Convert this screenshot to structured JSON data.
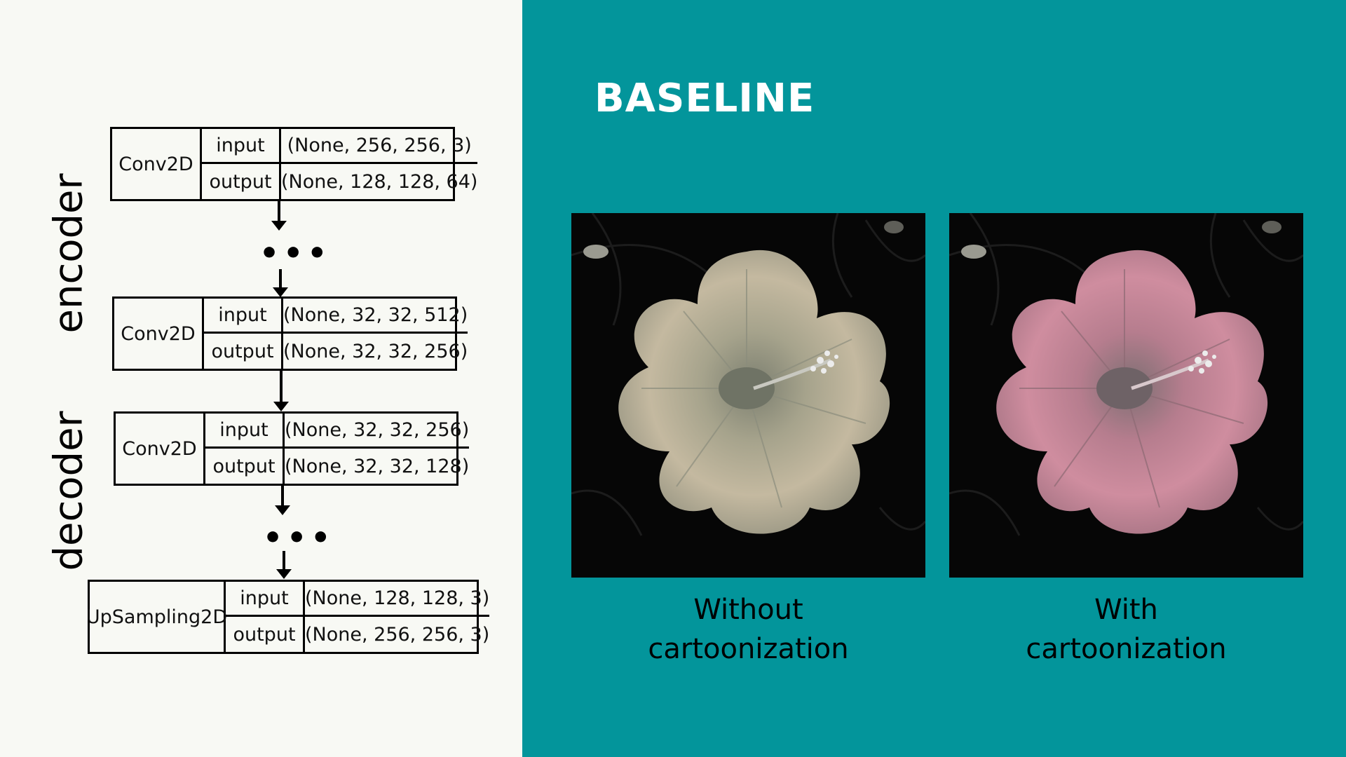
{
  "diagram": {
    "encoder_label": "encoder",
    "decoder_label": "decoder",
    "ellipsis": "•••",
    "layers": [
      {
        "name": "Conv2D",
        "input_key": "input",
        "input_shape": "(None, 256, 256, 3)",
        "output_key": "output",
        "output_shape": "(None, 128, 128, 64)"
      },
      {
        "name": "Conv2D",
        "input_key": "input",
        "input_shape": "(None, 32, 32, 512)",
        "output_key": "output",
        "output_shape": "(None, 32, 32, 256)"
      },
      {
        "name": "Conv2D",
        "input_key": "input",
        "input_shape": "(None, 32, 32, 256)",
        "output_key": "output",
        "output_shape": "(None, 32, 32, 128)"
      },
      {
        "name": "UpSampling2D",
        "input_key": "input",
        "input_shape": "(None, 128, 128, 3)",
        "output_key": "output",
        "output_shape": "(None, 256, 256, 3)"
      }
    ]
  },
  "baseline": {
    "title": "BASELINE",
    "images": [
      {
        "caption_line1": "Without",
        "caption_line2": "cartoonization",
        "tint": "#b8b49a"
      },
      {
        "caption_line1": "With",
        "caption_line2": "cartoonization",
        "tint": "#c98a98"
      }
    ]
  },
  "colors": {
    "left_background": "#f8f9f4",
    "right_background": "#03959b",
    "title_text": "#ffffff"
  }
}
